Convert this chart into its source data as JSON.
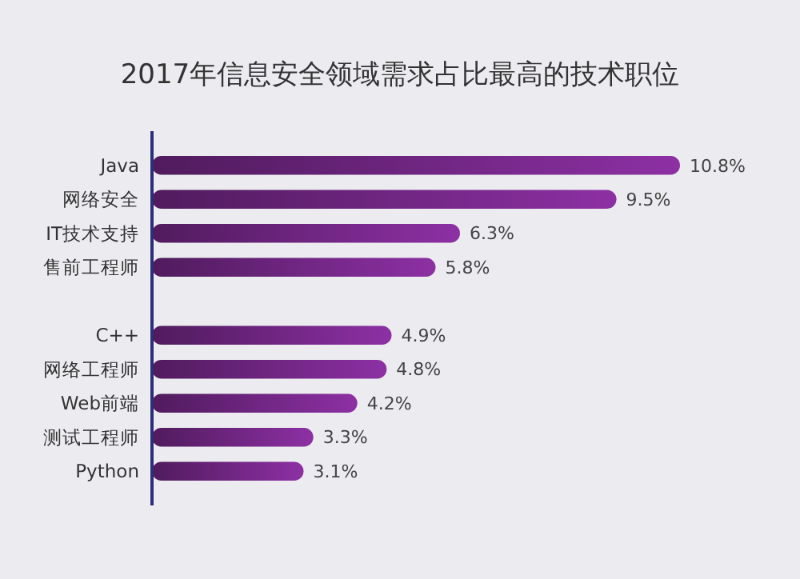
{
  "chart_data": {
    "type": "bar",
    "orientation": "horizontal",
    "title": "2017年信息安全领域需求占比最高的技术职位",
    "categories": [
      "Java",
      "网络安全",
      "IT技术支持",
      "售前工程师",
      null,
      "C++",
      "网络工程师",
      "Web前端",
      "测试工程师",
      "Python"
    ],
    "values": [
      10.8,
      9.5,
      6.3,
      5.8,
      null,
      4.9,
      4.8,
      4.2,
      3.3,
      3.1
    ],
    "value_labels": [
      "10.8%",
      "9.5%",
      "6.3%",
      "5.8%",
      null,
      "4.9%",
      "4.8%",
      "4.2%",
      "3.3%",
      "3.1%"
    ],
    "color": "#7a2a8e"
  }
}
